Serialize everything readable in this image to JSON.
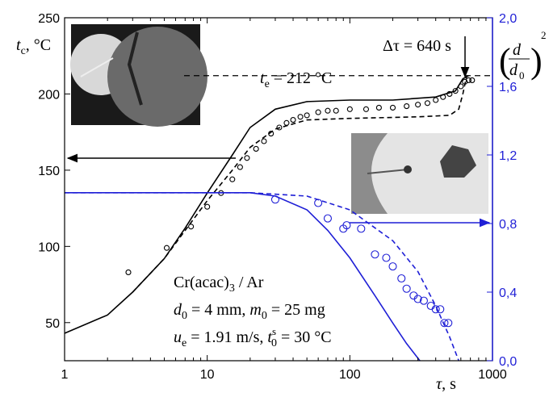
{
  "chart_data": {
    "type": "line",
    "x_label": [
      "τ",
      ", s"
    ],
    "y_label": [
      "t",
      "c",
      ", °C"
    ],
    "y2_label": [
      "(",
      "d",
      "d",
      "0",
      ")",
      "2"
    ],
    "xscale": "log",
    "xlim": [
      1,
      1000
    ],
    "xticks": [
      1,
      10,
      100,
      1000
    ],
    "ylim": [
      25,
      250
    ],
    "yticks": [
      50,
      100,
      150,
      200,
      250
    ],
    "y2lim": [
      0,
      2
    ],
    "y2ticks": [
      {
        "value": 0,
        "label": "0,0"
      },
      {
        "value": 0.4,
        "label": "0,4"
      },
      {
        "value": 0.8,
        "label": "0,8"
      },
      {
        "value": 1.2,
        "label": "1,2"
      },
      {
        "value": 1.6,
        "label": "1,6"
      },
      {
        "value": 2,
        "label": "2,0"
      }
    ],
    "reference_line": {
      "value": 212,
      "text": [
        "t",
        "e",
        " = 212 °C"
      ]
    },
    "annotations": {
      "delta_tau": "Δτ = 640 s",
      "material": [
        "Cr(acac)",
        "3",
        " / Ar"
      ],
      "params1": [
        "d",
        "0",
        " = 4 mm, ",
        "m",
        "0",
        " = 25 mg"
      ],
      "params2": [
        "u",
        "e",
        " = 1.91 m/s, ",
        "t",
        "s",
        "0",
        " = 30 °C"
      ]
    },
    "series": [
      {
        "style": "solid",
        "marker": "none",
        "color": "#000000",
        "x": [
          1,
          2,
          3,
          5,
          7,
          10,
          15,
          20,
          30,
          50,
          100,
          200,
          400,
          550,
          620,
          680
        ],
        "values": [
          43,
          55,
          70,
          92,
          112,
          135,
          160,
          178,
          190,
          195,
          196,
          196,
          198,
          202,
          210,
          212
        ]
      },
      {
        "style": "dashed",
        "marker": "none",
        "color": "#000000",
        "x": [
          3,
          5,
          10,
          15,
          20,
          30,
          50,
          100,
          300,
          500,
          580,
          620,
          660
        ],
        "values": [
          70,
          92,
          130,
          150,
          165,
          177,
          183,
          184,
          185,
          186,
          190,
          200,
          212
        ]
      },
      {
        "style": "none",
        "marker": "circle",
        "color": "#000000",
        "x": [
          2.8,
          5.2,
          7.7,
          10,
          12.5,
          15,
          17,
          19,
          22,
          25,
          28,
          32,
          36,
          40,
          45,
          50,
          60,
          70,
          80,
          100,
          130,
          160,
          200,
          250,
          300,
          350,
          400,
          450,
          500,
          550,
          600,
          640,
          680,
          720
        ],
        "values": [
          83,
          99,
          113,
          126,
          135,
          144,
          152,
          158,
          164,
          169,
          174,
          178,
          181,
          183,
          185,
          186,
          188,
          189,
          189,
          190,
          190,
          191,
          191,
          192,
          193,
          194,
          196,
          198,
          200,
          202,
          205,
          208,
          209,
          209
        ]
      },
      {
        "style": "solid",
        "marker": "none",
        "color": "#1f1fd6",
        "axis": "y2",
        "x": [
          1,
          10,
          20,
          30,
          50,
          70,
          100,
          150,
          200,
          250,
          310
        ],
        "values": [
          0.98,
          0.98,
          0.98,
          0.96,
          0.88,
          0.76,
          0.6,
          0.38,
          0.22,
          0.1,
          0
        ]
      },
      {
        "style": "dashed",
        "marker": "none",
        "color": "#1f1fd6",
        "axis": "y2",
        "x": [
          1,
          20,
          50,
          100,
          200,
          300,
          400,
          500,
          580
        ],
        "values": [
          0.98,
          0.98,
          0.96,
          0.88,
          0.7,
          0.52,
          0.32,
          0.14,
          0
        ]
      },
      {
        "style": "none",
        "marker": "circle",
        "color": "#1f1fd6",
        "axis": "y2",
        "x": [
          30,
          60,
          70,
          90,
          95,
          120,
          150,
          180,
          200,
          230,
          250,
          280,
          300,
          330,
          370,
          400,
          430,
          460,
          490
        ],
        "values": [
          0.94,
          0.92,
          0.83,
          0.77,
          0.79,
          0.77,
          0.62,
          0.6,
          0.55,
          0.48,
          0.42,
          0.38,
          0.36,
          0.35,
          0.32,
          0.3,
          0.3,
          0.22,
          0.22
        ]
      }
    ]
  }
}
